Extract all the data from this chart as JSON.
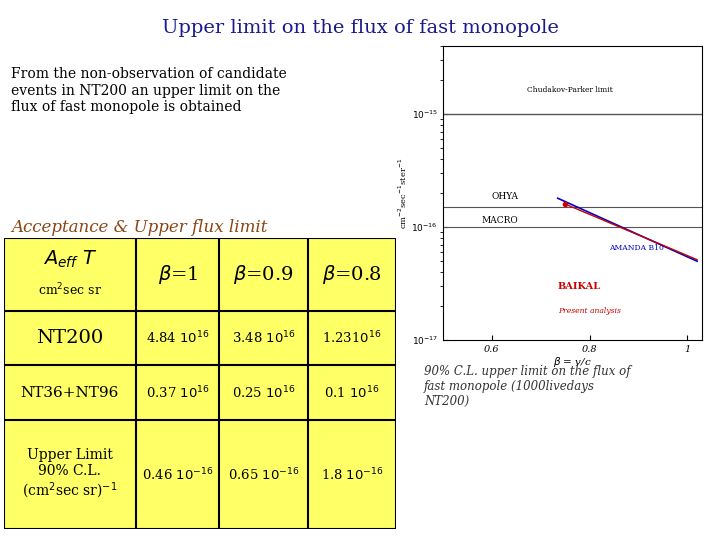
{
  "title": "Upper limit on the flux of fast monopole",
  "title_fontsize": 14,
  "title_color": "#1a1a8c",
  "bg_color": "#ffffff",
  "intro_text": "From the non-observation of candidate\nevents in NT200 an upper limit on the\nflux of fast monopole is obtained",
  "intro_fontsize": 10,
  "acceptance_text": "Acceptance & Upper flux limit",
  "acceptance_color": "#8b4513",
  "acceptance_fontsize": 12,
  "table_bg": "#ffff66",
  "table_border": "#000000",
  "plot_bg_outer": "#f0c080",
  "plot_bg_inner": "#ffffff",
  "caption_text": "90% C.L. upper limit on the flux of\nfast monopole (1000livedays\nNT200)",
  "caption_color": "#333333",
  "caption_fontsize": 8.5,
  "col_edges": [
    0,
    1.35,
    2.2,
    3.1,
    4.0
  ],
  "row_tops": [
    4.0,
    3.0,
    2.25,
    1.5,
    0.0
  ],
  "header_fontsize": 12,
  "cell_fontsize": 9.5,
  "row0_fontsize": 11,
  "row1_fontsize": 13
}
